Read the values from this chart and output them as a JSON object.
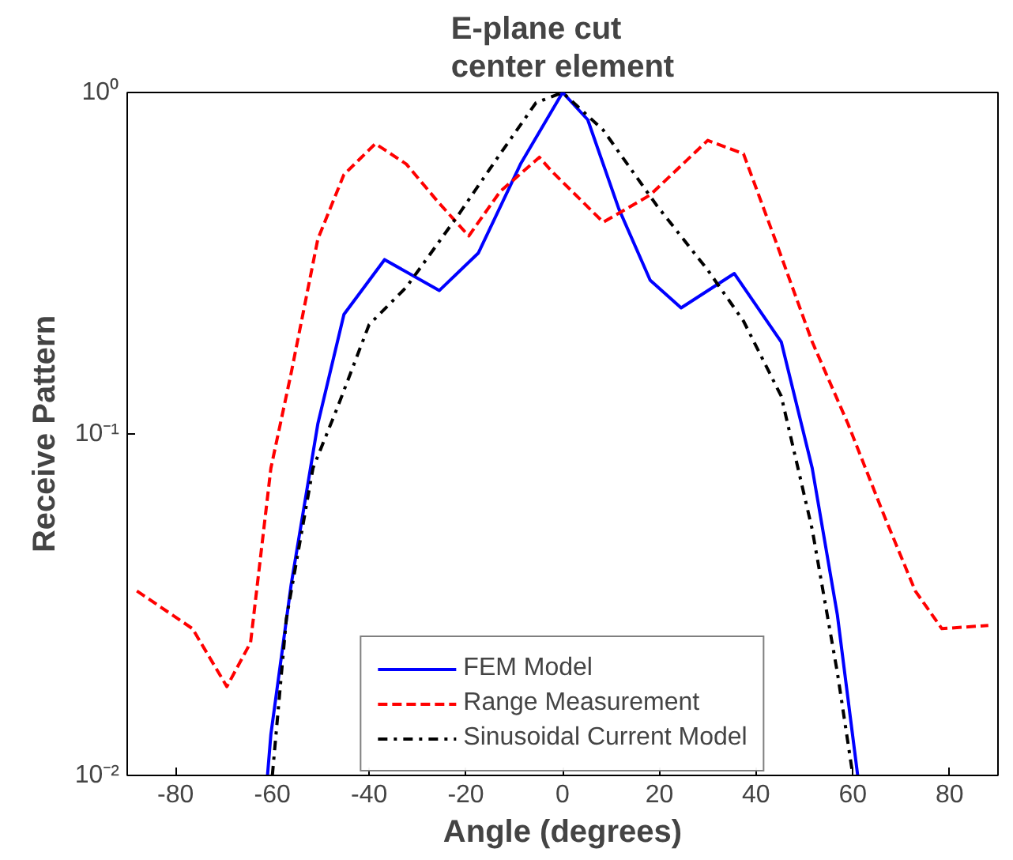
{
  "chart_data": {
    "type": "line",
    "title": "E-plane cut\ncenter element",
    "xlabel": "Angle (degrees)",
    "ylabel": "Receive Pattern",
    "xlim": [
      -90,
      90
    ],
    "xticks": [
      -80,
      -60,
      -40,
      -20,
      0,
      20,
      40,
      60,
      80
    ],
    "ylim": [
      0.01,
      1
    ],
    "yticks": [
      {
        "value": 0.01,
        "label": "10⁻²"
      },
      {
        "value": 0.1,
        "label": "10⁻¹"
      },
      {
        "value": 1,
        "label": "10⁰"
      }
    ],
    "log": "y",
    "grid": false,
    "legend": "bottom",
    "marker": "none",
    "series": [
      {
        "name": "FEM Model",
        "color": "#0000ff",
        "line_style": "solid",
        "x": [
          -61,
          -60.3,
          -56.1,
          -50.6,
          -45.2,
          -36.8,
          -25.5,
          -17.4,
          -8.7,
          0,
          5.2,
          11.6,
          18.1,
          24.5,
          35.5,
          45.2,
          51.6,
          56.8,
          61
        ],
        "values": [
          0.01,
          0.0132,
          0.0363,
          0.107,
          0.224,
          0.324,
          0.263,
          0.339,
          0.617,
          1,
          0.832,
          0.457,
          0.282,
          0.234,
          0.295,
          0.186,
          0.0794,
          0.0295,
          0.01
        ]
      },
      {
        "name": "Range Measurement",
        "color": "#ff0000",
        "line_style": "dashed",
        "x": [
          -88,
          -76.5,
          -69.4,
          -64.5,
          -60.3,
          -56.1,
          -50.6,
          -45.2,
          -38.7,
          -32.3,
          -25.8,
          -19.4,
          -12.9,
          -4.8,
          -2.3,
          8.4,
          18.1,
          30,
          37.4,
          43.9,
          51.6,
          59,
          66.5,
          72.9,
          78.4,
          88
        ],
        "values": [
          0.0347,
          0.0269,
          0.0182,
          0.0245,
          0.0794,
          0.151,
          0.372,
          0.575,
          0.708,
          0.617,
          0.479,
          0.38,
          0.513,
          0.646,
          0.589,
          0.417,
          0.501,
          0.724,
          0.661,
          0.372,
          0.186,
          0.107,
          0.0575,
          0.0347,
          0.0269,
          0.0275
        ]
      },
      {
        "name": "Sinusoidal Current Model",
        "color": "#000000",
        "line_style": "dashdot",
        "x": [
          -60,
          -57.1,
          -51.6,
          -46.5,
          -40,
          -32.3,
          -21.6,
          -12.9,
          -5.5,
          0,
          8.4,
          19.4,
          30,
          37.4,
          45.2,
          51.6,
          56.8,
          60
        ],
        "values": [
          0.01,
          0.0288,
          0.0794,
          0.12,
          0.209,
          0.269,
          0.437,
          0.661,
          0.933,
          1,
          0.776,
          0.468,
          0.302,
          0.214,
          0.129,
          0.0525,
          0.02,
          0.01
        ]
      }
    ]
  }
}
